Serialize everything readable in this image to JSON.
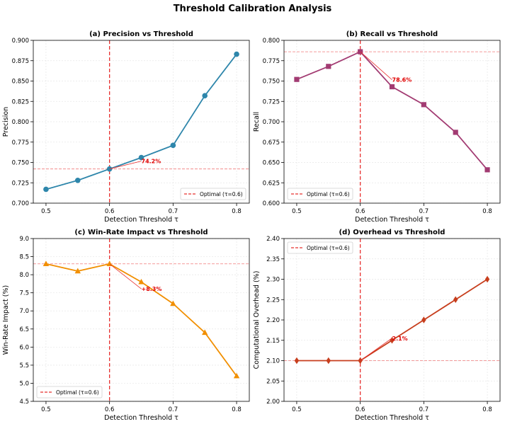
{
  "figure_title": "Threshold Calibration Analysis",
  "chart_data": [
    {
      "type": "line",
      "title": "(a) Precision vs Threshold",
      "xlabel": "Detection Threshold τ",
      "ylabel": "Precision",
      "x": [
        0.5,
        0.55,
        0.6,
        0.65,
        0.7,
        0.75,
        0.8
      ],
      "series": [
        {
          "name": "Precision",
          "values": [
            0.717,
            0.728,
            0.742,
            0.756,
            0.771,
            0.832,
            0.883
          ],
          "color": "#2e86ab",
          "marker": "circle"
        }
      ],
      "xlim": [
        0.48,
        0.82
      ],
      "ylim": [
        0.7,
        0.9
      ],
      "xticks": [
        0.5,
        0.6,
        0.7,
        0.8
      ],
      "xtick_labels": [
        "0.5",
        "0.6",
        "0.7",
        "0.8"
      ],
      "yticks": [
        0.7,
        0.725,
        0.75,
        0.775,
        0.8,
        0.825,
        0.85,
        0.875,
        0.9
      ],
      "ytick_labels": [
        "0.700",
        "0.725",
        "0.750",
        "0.775",
        "0.800",
        "0.825",
        "0.850",
        "0.875",
        "0.900"
      ],
      "optimal_x": 0.6,
      "optimal_y": 0.742,
      "annotation": {
        "text": "74.2%",
        "x": 0.6,
        "y": 0.742,
        "text_x": 0.65,
        "text_y": 0.749
      },
      "legend": {
        "label": "Optimal (τ=0.6)",
        "position": "lower-right"
      },
      "grid": true
    },
    {
      "type": "line",
      "title": "(b) Recall vs Threshold",
      "xlabel": "Detection Threshold τ",
      "ylabel": "Recall",
      "x": [
        0.5,
        0.55,
        0.6,
        0.65,
        0.7,
        0.75,
        0.8
      ],
      "series": [
        {
          "name": "Recall",
          "values": [
            0.752,
            0.768,
            0.786,
            0.743,
            0.721,
            0.687,
            0.641
          ],
          "color": "#a23b72",
          "marker": "square"
        }
      ],
      "xlim": [
        0.48,
        0.82
      ],
      "ylim": [
        0.6,
        0.8
      ],
      "xticks": [
        0.5,
        0.6,
        0.7,
        0.8
      ],
      "xtick_labels": [
        "0.5",
        "0.6",
        "0.7",
        "0.8"
      ],
      "yticks": [
        0.6,
        0.625,
        0.65,
        0.675,
        0.7,
        0.725,
        0.75,
        0.775,
        0.8
      ],
      "ytick_labels": [
        "0.600",
        "0.625",
        "0.650",
        "0.675",
        "0.700",
        "0.725",
        "0.750",
        "0.775",
        "0.800"
      ],
      "optimal_x": 0.6,
      "optimal_y": 0.786,
      "annotation": {
        "text": "78.6%",
        "x": 0.6,
        "y": 0.786,
        "text_x": 0.65,
        "text_y": 0.749
      },
      "legend": {
        "label": "Optimal (τ=0.6)",
        "position": "lower-left"
      },
      "grid": true
    },
    {
      "type": "line",
      "title": "(c) Win-Rate Impact vs Threshold",
      "xlabel": "Detection Threshold τ",
      "ylabel": "Win-Rate Impact (%)",
      "x": [
        0.5,
        0.55,
        0.6,
        0.65,
        0.7,
        0.75,
        0.8
      ],
      "series": [
        {
          "name": "Win-Rate Impact",
          "values": [
            8.3,
            8.1,
            8.3,
            7.8,
            7.2,
            6.4,
            5.2
          ],
          "color": "#f18f01",
          "marker": "triangle"
        }
      ],
      "xlim": [
        0.48,
        0.82
      ],
      "ylim": [
        4.5,
        9.0
      ],
      "xticks": [
        0.5,
        0.6,
        0.7,
        0.8
      ],
      "xtick_labels": [
        "0.5",
        "0.6",
        "0.7",
        "0.8"
      ],
      "yticks": [
        4.5,
        5.0,
        5.5,
        6.0,
        6.5,
        7.0,
        7.5,
        8.0,
        8.5,
        9.0
      ],
      "ytick_labels": [
        "4.5",
        "5.0",
        "5.5",
        "6.0",
        "6.5",
        "7.0",
        "7.5",
        "8.0",
        "8.5",
        "9.0"
      ],
      "optimal_x": 0.6,
      "optimal_y": 8.3,
      "annotation": {
        "text": "+8.3%",
        "x": 0.6,
        "y": 8.3,
        "text_x": 0.65,
        "text_y": 7.55
      },
      "legend": {
        "label": "Optimal (τ=0.6)",
        "position": "lower-left"
      },
      "grid": true
    },
    {
      "type": "line",
      "title": "(d) Overhead vs Threshold",
      "xlabel": "Detection Threshold τ",
      "ylabel": "Computational Overhead (%)",
      "x": [
        0.5,
        0.55,
        0.6,
        0.65,
        0.7,
        0.75,
        0.8
      ],
      "series": [
        {
          "name": "Overhead",
          "values": [
            2.1,
            2.1,
            2.1,
            2.15,
            2.2,
            2.25,
            2.3
          ],
          "color": "#c73e1d",
          "marker": "diamond"
        }
      ],
      "xlim": [
        0.48,
        0.82
      ],
      "ylim": [
        2.0,
        2.4
      ],
      "xticks": [
        0.5,
        0.6,
        0.7,
        0.8
      ],
      "xtick_labels": [
        "0.5",
        "0.6",
        "0.7",
        "0.8"
      ],
      "yticks": [
        2.0,
        2.05,
        2.1,
        2.15,
        2.2,
        2.25,
        2.3,
        2.35,
        2.4
      ],
      "ytick_labels": [
        "2.00",
        "2.05",
        "2.10",
        "2.15",
        "2.20",
        "2.25",
        "2.30",
        "2.35",
        "2.40"
      ],
      "optimal_x": 0.6,
      "optimal_y": 2.1,
      "annotation": {
        "text": "2.1%",
        "x": 0.6,
        "y": 2.1,
        "text_x": 0.65,
        "text_y": 2.15
      },
      "legend": {
        "label": "Optimal (τ=0.6)",
        "position": "top-left"
      },
      "grid": true
    }
  ]
}
